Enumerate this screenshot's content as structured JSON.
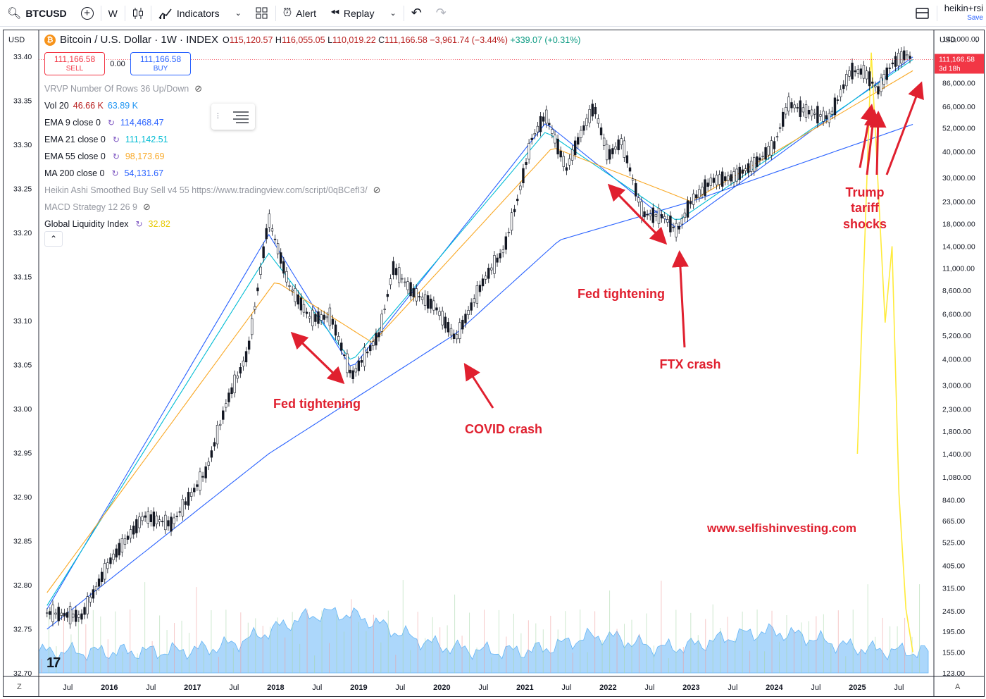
{
  "toolbar": {
    "symbol": "BTCUSD",
    "interval": "W",
    "indicators_label": "Indicators",
    "alert_label": "Alert",
    "replay_label": "Replay",
    "layout_name": "heikin+rsi",
    "layout_status": "Save"
  },
  "legend": {
    "title": "Bitcoin / U.S. Dollar · 1W · INDEX",
    "btc_glyph": "₿",
    "o_label": "O",
    "o": "115,120.57",
    "h_label": "H",
    "h": "116,055.05",
    "l_label": "L",
    "l": "110,019.22",
    "c_label": "C",
    "c": "111,166.58",
    "change": "−3,961.74 (−3.44%)",
    "extra": "+339.07 (+0.31%)"
  },
  "trade": {
    "sell_price": "111,166.58",
    "sell_label": "SELL",
    "spread": "0.00",
    "buy_price": "111,166.58",
    "buy_label": "BUY"
  },
  "indicators": [
    {
      "name": "VRVP Number Of Rows 36 Up/Down",
      "value": "",
      "color": "#9598a1",
      "hidden": true
    },
    {
      "name": "Vol 20",
      "value": "46.66 K",
      "value2": "63.89 K",
      "color": "#b71c1c",
      "color2": "#2196f3"
    },
    {
      "name": "EMA 9 close 0",
      "value": "114,468.47",
      "color": "#2962ff"
    },
    {
      "name": "EMA 21 close 0",
      "value": "111,142.51",
      "color": "#00bcd4"
    },
    {
      "name": "EMA 55 close 0",
      "value": "98,173.69",
      "color": "#f9a825"
    },
    {
      "name": "MA 200 close 0",
      "value": "54,131.67",
      "color": "#2962ff"
    },
    {
      "name": "Heikin Ashi Smoothed Buy Sell v4 55 https://www.tradingview.com/script/0qBCefI3/",
      "value": "",
      "color": "#9598a1",
      "hidden": true
    },
    {
      "name": "MACD Strategy 12 26 9",
      "value": "",
      "color": "#9598a1",
      "hidden": true
    },
    {
      "name": "Global Liquidity Index",
      "value": "32.82",
      "color": "#ffeb3b"
    }
  ],
  "axes": {
    "left_currency": "USD",
    "right_currency": "USD",
    "left_ticks": [
      "33.40",
      "33.35",
      "33.30",
      "33.25",
      "33.20",
      "33.15",
      "33.10",
      "33.05",
      "33.00",
      "32.95",
      "32.90",
      "32.85",
      "32.80",
      "32.75",
      "32.70"
    ],
    "right_ticks": [
      "140,000.00",
      "86,000.00",
      "66,000.00",
      "52,000.00",
      "40,000.00",
      "30,000.00",
      "23,000.00",
      "18,000.00",
      "14,000.00",
      "11,000.00",
      "8,600.00",
      "6,600.00",
      "5,200.00",
      "4,000.00",
      "3,000.00",
      "2,300.00",
      "1,800.00",
      "1,400.00",
      "1,080.00",
      "840.00",
      "665.00",
      "525.00",
      "405.00",
      "315.00",
      "245.00",
      "195.00",
      "155.00",
      "123.00"
    ],
    "x_ticks": [
      "Jul",
      "2016",
      "Jul",
      "2017",
      "Jul",
      "2018",
      "Jul",
      "2019",
      "Jul",
      "2020",
      "Jul",
      "2021",
      "Jul",
      "2022",
      "Jul",
      "2023",
      "Jul",
      "2024",
      "Jul",
      "2025",
      "Jul"
    ],
    "current_price": "111,166.58",
    "countdown": "3d 18h",
    "bottom_left": "Z",
    "bottom_right": "A"
  },
  "chart_data": {
    "type": "line",
    "title": "Bitcoin / U.S. Dollar · 1W · INDEX",
    "y_scale": "log",
    "ylim": [
      123,
      140000
    ],
    "secondary_ylim": [
      32.7,
      33.42
    ],
    "series": [
      {
        "name": "BTCUSD",
        "color": "#131722",
        "x": [
          "2015-04",
          "2015-09",
          "2016-01",
          "2016-06",
          "2016-10",
          "2017-03",
          "2017-06",
          "2017-09",
          "2017-12",
          "2018-03",
          "2018-06",
          "2018-09",
          "2018-12",
          "2019-04",
          "2019-06",
          "2019-09",
          "2019-12",
          "2020-03",
          "2020-07",
          "2020-10",
          "2020-12",
          "2021-02",
          "2021-04",
          "2021-07",
          "2021-09",
          "2021-11",
          "2022-01",
          "2022-03",
          "2022-06",
          "2022-09",
          "2022-11",
          "2023-01",
          "2023-04",
          "2023-07",
          "2023-10",
          "2024-01",
          "2024-03",
          "2024-06",
          "2024-09",
          "2024-12",
          "2025-02",
          "2025-04",
          "2025-06",
          "2025-08",
          "2025-09"
        ],
        "y": [
          240,
          230,
          420,
          700,
          640,
          1150,
          2500,
          4300,
          19000,
          9000,
          6300,
          6400,
          3300,
          5300,
          11000,
          8300,
          7200,
          5000,
          9500,
          13500,
          24000,
          46000,
          60000,
          33000,
          48000,
          66000,
          38000,
          45000,
          20000,
          19500,
          16500,
          23000,
          29000,
          30000,
          34500,
          43000,
          68000,
          62000,
          58000,
          98000,
          97000,
          79000,
          106000,
          118000,
          111166
        ]
      },
      {
        "name": "EMA 9",
        "color": "#2962ff",
        "x": [
          "2015-04",
          "2017-12",
          "2018-12",
          "2021-04",
          "2022-11",
          "2025-09"
        ],
        "y": [
          250,
          16000,
          3600,
          55000,
          17000,
          114468
        ]
      },
      {
        "name": "EMA 21",
        "color": "#00bcd4",
        "x": [
          "2015-04",
          "2017-12",
          "2018-12",
          "2021-04",
          "2022-11",
          "2025-09"
        ],
        "y": [
          260,
          13000,
          3900,
          50000,
          18500,
          111142
        ]
      },
      {
        "name": "EMA 55",
        "color": "#f9a825",
        "x": [
          "2015-04",
          "2018-01",
          "2019-03",
          "2021-05",
          "2023-01",
          "2025-09"
        ],
        "y": [
          300,
          9500,
          4800,
          42000,
          23000,
          98173
        ]
      },
      {
        "name": "MA 200",
        "color": "#2962ff",
        "x": [
          "2015-04",
          "2017-12",
          "2020-03",
          "2021-06",
          "2023-01",
          "2025-09"
        ],
        "y": [
          200,
          1400,
          5300,
          15000,
          23000,
          54131
        ]
      },
      {
        "name": "Global Liquidity Index",
        "color": "#ffeb3b",
        "x": [
          "2025-01",
          "2025-03",
          "2025-05",
          "2025-06",
          "2025-07",
          "2025-08",
          "2025-09"
        ],
        "y": [
          1400,
          120000,
          6000,
          14000,
          900,
          250,
          155
        ]
      }
    ],
    "annotations": [
      {
        "text": "Fed tightening",
        "x": "2018-08",
        "color": "#e0202f"
      },
      {
        "text": "COVID crash",
        "x": "2020-03",
        "color": "#e0202f"
      },
      {
        "text": "Fed tightening",
        "x": "2022-04",
        "color": "#e0202f"
      },
      {
        "text": "FTX crash",
        "x": "2022-11",
        "color": "#e0202f"
      },
      {
        "text": "Trump",
        "x": "2025-02",
        "color": "#e0202f"
      },
      {
        "text": "tariff",
        "x": "2025-02",
        "color": "#e0202f"
      },
      {
        "text": "shocks",
        "x": "2025-02",
        "color": "#e0202f"
      },
      {
        "text": "www.selfishinvesting.com",
        "x": "2024-01",
        "color": "#e0202f"
      }
    ],
    "grid": false,
    "legend_position": "top-left"
  }
}
